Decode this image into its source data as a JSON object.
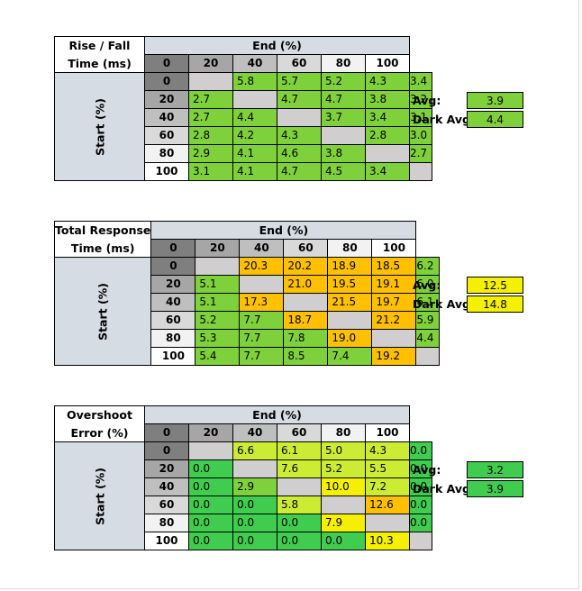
{
  "colors": {
    "header_blue": "#d6dce4",
    "diagonal_gray": "#d0cece",
    "green": "#7fd13b",
    "bright_green": "#3fcc4f",
    "yellow_green": "#ccec34",
    "yellow": "#f4f000",
    "orange": "#ffc000",
    "col_shades": [
      "#7f7f7f",
      "#a6a6a6",
      "#bfbfbf",
      "#d9d9d9",
      "#f2f2f2",
      "#ffffff"
    ]
  },
  "tables": [
    {
      "title_line1": "Rise / Fall",
      "title_line2": "Time (ms)",
      "end_label": "End (%)",
      "start_label": "Start (%)",
      "columns": [
        "0",
        "20",
        "40",
        "60",
        "80",
        "100"
      ],
      "rows": [
        {
          "start": "0",
          "cells": [
            [
              "",
              "d"
            ],
            [
              "5.8",
              "g"
            ],
            [
              "5.7",
              "g"
            ],
            [
              "5.2",
              "g"
            ],
            [
              "4.3",
              "g"
            ],
            [
              "3.4",
              "g"
            ]
          ]
        },
        {
          "start": "20",
          "cells": [
            [
              "2.7",
              "g"
            ],
            [
              "",
              "d"
            ],
            [
              "4.7",
              "g"
            ],
            [
              "4.7",
              "g"
            ],
            [
              "3.8",
              "g"
            ],
            [
              "3.2",
              "g"
            ]
          ]
        },
        {
          "start": "40",
          "cells": [
            [
              "2.7",
              "g"
            ],
            [
              "4.4",
              "g"
            ],
            [
              "",
              "d"
            ],
            [
              "3.7",
              "g"
            ],
            [
              "3.4",
              "g"
            ],
            [
              "3.1",
              "g"
            ]
          ]
        },
        {
          "start": "60",
          "cells": [
            [
              "2.8",
              "g"
            ],
            [
              "4.2",
              "g"
            ],
            [
              "4.3",
              "g"
            ],
            [
              "",
              "d"
            ],
            [
              "2.8",
              "g"
            ],
            [
              "3.0",
              "g"
            ]
          ]
        },
        {
          "start": "80",
          "cells": [
            [
              "2.9",
              "g"
            ],
            [
              "4.1",
              "g"
            ],
            [
              "4.6",
              "g"
            ],
            [
              "3.8",
              "g"
            ],
            [
              "",
              "d"
            ],
            [
              "2.7",
              "g"
            ]
          ]
        },
        {
          "start": "100",
          "cells": [
            [
              "3.1",
              "g"
            ],
            [
              "4.1",
              "g"
            ],
            [
              "4.7",
              "g"
            ],
            [
              "4.5",
              "g"
            ],
            [
              "3.4",
              "g"
            ],
            [
              "",
              "d"
            ]
          ]
        }
      ],
      "avg_label": "Avg:",
      "avg_value": "3.9",
      "avg_color": "g",
      "dark_avg_label": "Dark Avg:",
      "dark_avg_value": "4.4",
      "dark_avg_color": "g"
    },
    {
      "title_line1": "Total Response",
      "title_line2": "Time (ms)",
      "end_label": "End (%)",
      "start_label": "Start (%)",
      "columns": [
        "0",
        "20",
        "40",
        "60",
        "80",
        "100"
      ],
      "rows": [
        {
          "start": "0",
          "cells": [
            [
              "",
              "d"
            ],
            [
              "20.3",
              "o"
            ],
            [
              "20.2",
              "o"
            ],
            [
              "18.9",
              "o"
            ],
            [
              "18.5",
              "o"
            ],
            [
              "6.2",
              "g"
            ]
          ]
        },
        {
          "start": "20",
          "cells": [
            [
              "5.1",
              "g"
            ],
            [
              "",
              "d"
            ],
            [
              "21.0",
              "o"
            ],
            [
              "19.5",
              "o"
            ],
            [
              "19.1",
              "o"
            ],
            [
              "6.0",
              "g"
            ]
          ]
        },
        {
          "start": "40",
          "cells": [
            [
              "5.1",
              "g"
            ],
            [
              "17.3",
              "o"
            ],
            [
              "",
              "d"
            ],
            [
              "21.5",
              "o"
            ],
            [
              "19.7",
              "o"
            ],
            [
              "6.1",
              "g"
            ]
          ]
        },
        {
          "start": "60",
          "cells": [
            [
              "5.2",
              "g"
            ],
            [
              "7.7",
              "g"
            ],
            [
              "18.7",
              "o"
            ],
            [
              "",
              "d"
            ],
            [
              "21.2",
              "o"
            ],
            [
              "5.9",
              "g"
            ]
          ]
        },
        {
          "start": "80",
          "cells": [
            [
              "5.3",
              "g"
            ],
            [
              "7.7",
              "g"
            ],
            [
              "7.8",
              "g"
            ],
            [
              "19.0",
              "o"
            ],
            [
              "",
              "d"
            ],
            [
              "4.4",
              "g"
            ]
          ]
        },
        {
          "start": "100",
          "cells": [
            [
              "5.4",
              "g"
            ],
            [
              "7.7",
              "g"
            ],
            [
              "8.5",
              "g"
            ],
            [
              "7.4",
              "g"
            ],
            [
              "19.2",
              "o"
            ],
            [
              "",
              "d"
            ]
          ]
        }
      ],
      "avg_label": "Avg:",
      "avg_value": "12.5",
      "avg_color": "y",
      "dark_avg_label": "Dark Avg:",
      "dark_avg_value": "14.8",
      "dark_avg_color": "y"
    },
    {
      "title_line1": "Overshoot",
      "title_line2": "Error (%)",
      "end_label": "End (%)",
      "start_label": "Start (%)",
      "columns": [
        "0",
        "20",
        "40",
        "60",
        "80",
        "100"
      ],
      "rows": [
        {
          "start": "0",
          "cells": [
            [
              "",
              "d"
            ],
            [
              "6.6",
              "yg"
            ],
            [
              "6.1",
              "yg"
            ],
            [
              "5.0",
              "yg"
            ],
            [
              "4.3",
              "yg"
            ],
            [
              "0.0",
              "bg"
            ]
          ]
        },
        {
          "start": "20",
          "cells": [
            [
              "0.0",
              "bg"
            ],
            [
              "",
              "d"
            ],
            [
              "7.6",
              "yg"
            ],
            [
              "5.2",
              "yg"
            ],
            [
              "5.5",
              "yg"
            ],
            [
              "0.0",
              "bg"
            ]
          ]
        },
        {
          "start": "40",
          "cells": [
            [
              "0.0",
              "bg"
            ],
            [
              "2.9",
              "g"
            ],
            [
              "",
              "d"
            ],
            [
              "10.0",
              "y"
            ],
            [
              "7.2",
              "yg"
            ],
            [
              "0.0",
              "bg"
            ]
          ]
        },
        {
          "start": "60",
          "cells": [
            [
              "0.0",
              "bg"
            ],
            [
              "0.0",
              "bg"
            ],
            [
              "5.8",
              "yg"
            ],
            [
              "",
              "d"
            ],
            [
              "12.6",
              "o"
            ],
            [
              "0.0",
              "bg"
            ]
          ]
        },
        {
          "start": "80",
          "cells": [
            [
              "0.0",
              "bg"
            ],
            [
              "0.0",
              "bg"
            ],
            [
              "0.0",
              "bg"
            ],
            [
              "7.9",
              "y"
            ],
            [
              "",
              "d"
            ],
            [
              "0.0",
              "bg"
            ]
          ]
        },
        {
          "start": "100",
          "cells": [
            [
              "0.0",
              "bg"
            ],
            [
              "0.0",
              "bg"
            ],
            [
              "0.0",
              "bg"
            ],
            [
              "0.0",
              "bg"
            ],
            [
              "10.3",
              "y"
            ],
            [
              "",
              "d"
            ]
          ]
        }
      ],
      "avg_label": "Avg:",
      "avg_value": "3.2",
      "avg_color": "bg",
      "dark_avg_label": "Dark Avg:",
      "dark_avg_value": "3.9",
      "dark_avg_color": "bg"
    }
  ]
}
